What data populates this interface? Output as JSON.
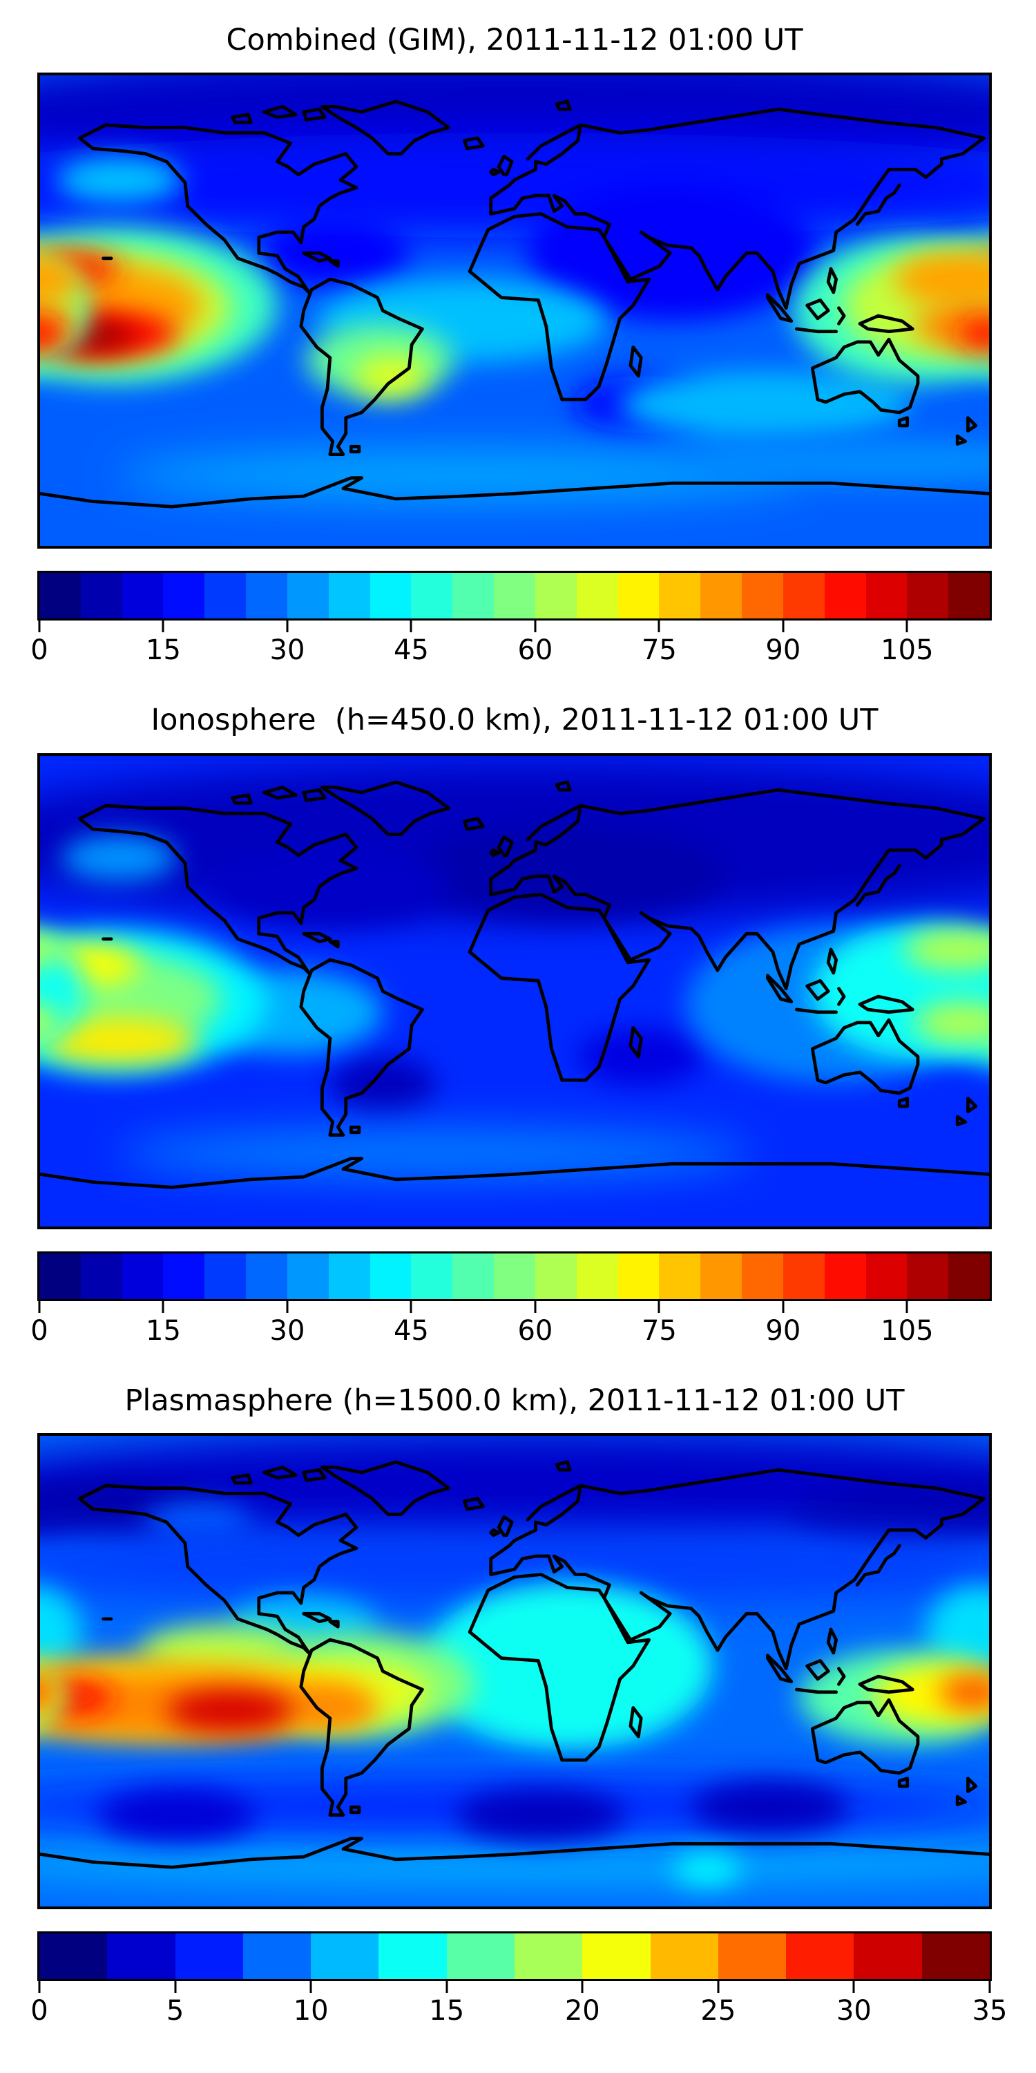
{
  "page": {
    "background_color": "#ffffff",
    "figure_type": "matplotlib-style stacked contour maps",
    "n_panels": 3
  },
  "chart_data": [
    {
      "type": "heatmap",
      "subtype": "filled-contour-world-map",
      "title": "Combined (GIM), 2011-11-12 01:00 UT",
      "projection": "equirectangular",
      "lon_range": [
        -180,
        180
      ],
      "lat_range": [
        -90,
        90
      ],
      "colormap": "jet",
      "grid": false,
      "legend": "horizontal colorbar below map",
      "colorbar": {
        "min": 0,
        "max": 115,
        "step": 5,
        "ticks": [
          0,
          15,
          30,
          45,
          60,
          75,
          90,
          105
        ]
      },
      "background_value": 25,
      "features": [
        {
          "name": "north-polar-dark-band",
          "lon": 0,
          "lat": 74,
          "rx": 230,
          "ry": 26,
          "value": 8
        },
        {
          "name": "north-midlat-band",
          "lon": 0,
          "lat": 48,
          "rx": 230,
          "ry": 20,
          "value": 16
        },
        {
          "name": "arabia-india-dark",
          "lon": 60,
          "lat": 22,
          "rx": 55,
          "ry": 26,
          "value": 14
        },
        {
          "name": "caribbean-dark",
          "lon": -68,
          "lat": 22,
          "rx": 28,
          "ry": 13,
          "value": 15
        },
        {
          "name": "mozambique-dark-oval",
          "lon": 48,
          "lat": -36,
          "rx": 26,
          "ry": 11,
          "value": 16
        },
        {
          "name": "gulf-alaska-cyan",
          "lon": -150,
          "lat": 50,
          "rx": 24,
          "ry": 9,
          "value": 36
        },
        {
          "name": "equatorial-atlantic-cyan",
          "lon": -20,
          "lat": -4,
          "rx": 55,
          "ry": 16,
          "value": 36
        },
        {
          "name": "south-indian-cyan",
          "lon": 95,
          "lat": -36,
          "rx": 55,
          "ry": 13,
          "value": 35
        },
        {
          "name": "subantarctic-cyan-band",
          "lon": -20,
          "lat": -63,
          "rx": 130,
          "ry": 10,
          "value": 33
        },
        {
          "name": "subantarctic-cyan-east",
          "lon": 140,
          "lat": -58,
          "rx": 70,
          "ry": 9,
          "value": 30
        },
        {
          "name": "south-america-green",
          "lon": -51,
          "lat": -19,
          "rx": 28,
          "ry": 14,
          "value": 55
        },
        {
          "name": "south-america-yellow",
          "lon": -47,
          "lat": -25,
          "rx": 14,
          "ry": 8,
          "value": 68
        },
        {
          "name": "wpacific-green-envelope",
          "lon": -152,
          "lat": 2,
          "rx": 62,
          "ry": 30,
          "value": 50
        },
        {
          "name": "wpacific-yellow",
          "lon": -155,
          "lat": 1,
          "rx": 48,
          "ry": 22,
          "value": 65
        },
        {
          "name": "wpacific-orange",
          "lon": -158,
          "lat": 2,
          "rx": 40,
          "ry": 16,
          "value": 82
        },
        {
          "name": "wpacific-red-north-crest",
          "lon": -170,
          "lat": 16,
          "rx": 20,
          "ry": 7,
          "value": 97
        },
        {
          "name": "wpacific-red-south-crest",
          "lon": -158,
          "lat": -9,
          "rx": 30,
          "ry": 9,
          "value": 100
        },
        {
          "name": "wpacific-darkred-core",
          "lon": -160,
          "lat": -10,
          "rx": 16,
          "ry": 5.5,
          "value": 112
        },
        {
          "name": "epacific-green-envelope",
          "lon": 152,
          "lat": 0,
          "rx": 46,
          "ry": 28,
          "value": 50
        },
        {
          "name": "epacific-yellow",
          "lon": 160,
          "lat": 2,
          "rx": 35,
          "ry": 20,
          "value": 65
        },
        {
          "name": "epacific-orange-north",
          "lon": 170,
          "lat": 12,
          "rx": 26,
          "ry": 11,
          "value": 82
        },
        {
          "name": "epacific-orange-south",
          "lon": 172,
          "lat": -6,
          "rx": 20,
          "ry": 9,
          "value": 85
        },
        {
          "name": "epacific-red-core",
          "lon": 179,
          "lat": -9,
          "rx": 11,
          "ry": 6,
          "value": 98
        }
      ]
    },
    {
      "type": "heatmap",
      "subtype": "filled-contour-world-map",
      "title": "Ionosphere  (h=450.0 km), 2011-11-12 01:00 UT",
      "projection": "equirectangular",
      "lon_range": [
        -180,
        180
      ],
      "lat_range": [
        -90,
        90
      ],
      "colormap": "jet",
      "grid": false,
      "legend": "horizontal colorbar below map",
      "colorbar": {
        "min": 0,
        "max": 115,
        "step": 5,
        "ticks": [
          0,
          15,
          30,
          45,
          60,
          75,
          90,
          105
        ]
      },
      "background_value": 19,
      "features": [
        {
          "name": "north-dark-band",
          "lon": 10,
          "lat": 58,
          "rx": 230,
          "ry": 30,
          "value": 7
        },
        {
          "name": "europe-dark-core",
          "lon": 20,
          "lat": 45,
          "rx": 60,
          "ry": 18,
          "value": 5
        },
        {
          "name": "na-east-dark",
          "lon": -70,
          "lat": 40,
          "rx": 45,
          "ry": 16,
          "value": 8
        },
        {
          "name": "gulf-alaska-cyan",
          "lon": -150,
          "lat": 51,
          "rx": 22,
          "ry": 9,
          "value": 31
        },
        {
          "name": "sam-dark-oval",
          "lon": -50,
          "lat": -36,
          "rx": 20,
          "ry": 11,
          "value": 7
        },
        {
          "name": "madagascar-dark",
          "lon": 48,
          "lat": -25,
          "rx": 24,
          "ry": 11,
          "value": 11
        },
        {
          "name": "seasia-cyan",
          "lon": 120,
          "lat": -5,
          "rx": 55,
          "ry": 30,
          "value": 29
        },
        {
          "name": "peru-cyan",
          "lon": -85,
          "lat": -8,
          "rx": 35,
          "ry": 16,
          "value": 34
        },
        {
          "name": "subantarctic-cyan-band",
          "lon": -30,
          "lat": -62,
          "rx": 120,
          "ry": 10,
          "value": 28
        },
        {
          "name": "wpacific-green-envelope",
          "lon": -152,
          "lat": -4,
          "rx": 58,
          "ry": 28,
          "value": 42
        },
        {
          "name": "wpacific-yellow-envelope",
          "lon": -155,
          "lat": -3,
          "rx": 44,
          "ry": 18,
          "value": 57
        },
        {
          "name": "wpacific-orange-north-crest",
          "lon": -164,
          "lat": 10,
          "rx": 22,
          "ry": 8,
          "value": 72
        },
        {
          "name": "wpacific-orange-south-crest",
          "lon": -150,
          "lat": -19,
          "rx": 30,
          "ry": 9,
          "value": 74
        },
        {
          "name": "epacific-green-envelope",
          "lon": 155,
          "lat": 0,
          "rx": 42,
          "ry": 26,
          "value": 44
        },
        {
          "name": "epacific-yellow-north",
          "lon": 168,
          "lat": 16,
          "rx": 20,
          "ry": 8,
          "value": 63
        },
        {
          "name": "epacific-yellow-south",
          "lon": 170,
          "lat": -12,
          "rx": 18,
          "ry": 8,
          "value": 63
        }
      ]
    },
    {
      "type": "heatmap",
      "subtype": "filled-contour-world-map",
      "title": "Plasmasphere (h=1500.0 km), 2011-11-12 01:00 UT",
      "projection": "equirectangular",
      "lon_range": [
        -180,
        180
      ],
      "lat_range": [
        -90,
        90
      ],
      "colormap": "jet",
      "grid": false,
      "legend": "horizontal colorbar below map",
      "colorbar": {
        "min": 0,
        "max": 35,
        "step": 2.5,
        "ticks": [
          0,
          5,
          10,
          15,
          20,
          25,
          30,
          35
        ]
      },
      "background_value": 8,
      "features": [
        {
          "name": "north-polar-dark-band",
          "lon": 10,
          "lat": 70,
          "rx": 230,
          "ry": 22,
          "value": 2.5
        },
        {
          "name": "nw-corner-dark",
          "lon": -150,
          "lat": 62,
          "rx": 40,
          "ry": 11,
          "value": 1.5
        },
        {
          "name": "ne-siberia-dark",
          "lon": 150,
          "lat": 60,
          "rx": 45,
          "ry": 12,
          "value": 1.8
        },
        {
          "name": "west-canada-blue",
          "lon": -120,
          "lat": 57,
          "rx": 20,
          "ry": 8,
          "value": 7.5
        },
        {
          "name": "north-midlat-blue-band",
          "lon": 0,
          "lat": 40,
          "rx": 230,
          "ry": 14,
          "value": 6.5
        },
        {
          "name": "africa-teal",
          "lon": 20,
          "lat": 2,
          "rx": 55,
          "ry": 32,
          "value": 13.5
        },
        {
          "name": "caribbean-cyan",
          "lon": -80,
          "lat": 18,
          "rx": 28,
          "ry": 11,
          "value": 11
        },
        {
          "name": "right-edge-cyan",
          "lon": 176,
          "lat": 15,
          "rx": 20,
          "ry": 18,
          "value": 12
        },
        {
          "name": "antarctic-blue-band",
          "lon": 0,
          "lat": -72,
          "rx": 230,
          "ry": 9,
          "value": 10.5
        },
        {
          "name": "south-dark-band",
          "lon": -10,
          "lat": -52,
          "rx": 200,
          "ry": 10,
          "value": 5.5
        },
        {
          "name": "spacific-dark-oval",
          "lon": -128,
          "lat": -55,
          "rx": 30,
          "ry": 10,
          "value": 3
        },
        {
          "name": "satlantic-dark-oval",
          "lon": 10,
          "lat": -55,
          "rx": 32,
          "ry": 10,
          "value": 2.2
        },
        {
          "name": "sindian-dark-oval",
          "lon": 97,
          "lat": -52,
          "rx": 30,
          "ry": 10,
          "value": 2.2
        },
        {
          "name": "antarctica-teal-spot",
          "lon": 73,
          "lat": -76,
          "rx": 13,
          "ry": 6,
          "value": 13
        },
        {
          "name": "sam-green-band",
          "lon": -60,
          "lat": -5,
          "rx": 45,
          "ry": 20,
          "value": 17.5
        },
        {
          "name": "sam-yellow",
          "lon": -62,
          "lat": -8,
          "rx": 30,
          "ry": 12,
          "value": 21
        },
        {
          "name": "mexico-yellowgreen",
          "lon": -112,
          "lat": 8,
          "rx": 30,
          "ry": 10,
          "value": 19
        },
        {
          "name": "pacific-yellow-envelope",
          "lon": -135,
          "lat": -10,
          "rx": 80,
          "ry": 16,
          "value": 23
        },
        {
          "name": "pacific-orange-band",
          "lon": -130,
          "lat": -13,
          "rx": 65,
          "ry": 12,
          "value": 26
        },
        {
          "name": "sam-west-orange",
          "lon": -66,
          "lat": -14,
          "rx": 14,
          "ry": 8,
          "value": 26
        },
        {
          "name": "pacific-red-west",
          "lon": -168,
          "lat": -10,
          "rx": 16,
          "ry": 7,
          "value": 30
        },
        {
          "name": "pacific-red-core",
          "lon": -108,
          "lat": -15,
          "rx": 24,
          "ry": 8,
          "value": 32
        },
        {
          "name": "epacific-green",
          "lon": 148,
          "lat": -10,
          "rx": 40,
          "ry": 18,
          "value": 16
        },
        {
          "name": "epacific-yellow",
          "lon": 162,
          "lat": -9,
          "rx": 26,
          "ry": 12,
          "value": 22
        },
        {
          "name": "epacific-orange",
          "lon": 174,
          "lat": -8,
          "rx": 13,
          "ry": 7,
          "value": 27.5
        }
      ]
    }
  ]
}
